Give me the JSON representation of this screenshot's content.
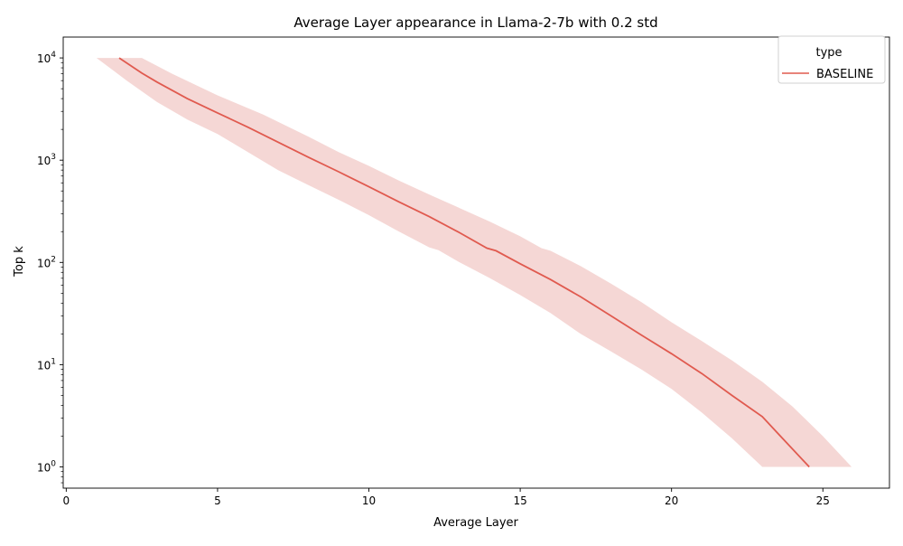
{
  "chart_data": {
    "type": "line",
    "title": "Average Layer appearance in Llama-2-7b with 0.2 std",
    "xlabel": "Average Layer",
    "ylabel": "Top k",
    "xlim": [
      -0.1,
      27.2
    ],
    "ylim": [
      0.62,
      16000
    ],
    "yscale": "log",
    "grid": false,
    "legend": {
      "title": "type",
      "position": "top-right"
    },
    "x_ticks": [
      {
        "value": 0,
        "label": "0"
      },
      {
        "value": 5,
        "label": "5"
      },
      {
        "value": 10,
        "label": "10"
      },
      {
        "value": 15,
        "label": "15"
      },
      {
        "value": 20,
        "label": "20"
      },
      {
        "value": 25,
        "label": "25"
      }
    ],
    "y_ticks": [
      {
        "value": 1,
        "base": "10",
        "exp": "0"
      },
      {
        "value": 10,
        "base": "10",
        "exp": "1"
      },
      {
        "value": 100,
        "base": "10",
        "exp": "2"
      },
      {
        "value": 1000,
        "base": "10",
        "exp": "3"
      },
      {
        "value": 10000,
        "base": "10",
        "exp": "4"
      }
    ],
    "series": [
      {
        "name": "BASELINE",
        "color": "#e05a4f",
        "band_color": "#f5d7d5",
        "points": [
          {
            "x": 1.75,
            "y": 10000
          },
          {
            "x": 2.5,
            "y": 7100
          },
          {
            "x": 3.0,
            "y": 5800
          },
          {
            "x": 4.0,
            "y": 4000
          },
          {
            "x": 5.0,
            "y": 2900
          },
          {
            "x": 6.0,
            "y": 2100
          },
          {
            "x": 7.0,
            "y": 1500
          },
          {
            "x": 8.0,
            "y": 1070
          },
          {
            "x": 9.0,
            "y": 770
          },
          {
            "x": 10.0,
            "y": 550
          },
          {
            "x": 11.0,
            "y": 390
          },
          {
            "x": 12.0,
            "y": 280
          },
          {
            "x": 13.0,
            "y": 195
          },
          {
            "x": 13.9,
            "y": 138
          },
          {
            "x": 14.2,
            "y": 130
          },
          {
            "x": 15.0,
            "y": 97
          },
          {
            "x": 16.0,
            "y": 68
          },
          {
            "x": 17.0,
            "y": 46
          },
          {
            "x": 18.0,
            "y": 30
          },
          {
            "x": 19.0,
            "y": 19.5
          },
          {
            "x": 20.0,
            "y": 12.8
          },
          {
            "x": 21.0,
            "y": 8.2
          },
          {
            "x": 22.0,
            "y": 5.0
          },
          {
            "x": 23.0,
            "y": 3.1
          },
          {
            "x": 23.6,
            "y": 2.0
          },
          {
            "x": 24.55,
            "y": 1.0
          }
        ],
        "band_upper": [
          {
            "x": 1.0,
            "y": 10000
          },
          {
            "x": 2.5,
            "y": 10000
          },
          {
            "x": 3.5,
            "y": 7000
          },
          {
            "x": 5.0,
            "y": 4300
          },
          {
            "x": 6.5,
            "y": 2800
          },
          {
            "x": 8.0,
            "y": 1700
          },
          {
            "x": 9.0,
            "y": 1200
          },
          {
            "x": 10.0,
            "y": 880
          },
          {
            "x": 11.0,
            "y": 630
          },
          {
            "x": 12.0,
            "y": 460
          },
          {
            "x": 13.0,
            "y": 340
          },
          {
            "x": 14.0,
            "y": 250
          },
          {
            "x": 15.0,
            "y": 180
          },
          {
            "x": 15.7,
            "y": 138
          },
          {
            "x": 16.0,
            "y": 130
          },
          {
            "x": 17.0,
            "y": 92
          },
          {
            "x": 18.0,
            "y": 62
          },
          {
            "x": 19.0,
            "y": 41
          },
          {
            "x": 20.0,
            "y": 26
          },
          {
            "x": 21.0,
            "y": 17
          },
          {
            "x": 22.0,
            "y": 11
          },
          {
            "x": 23.0,
            "y": 6.8
          },
          {
            "x": 24.0,
            "y": 3.9
          },
          {
            "x": 25.0,
            "y": 2.0
          },
          {
            "x": 25.95,
            "y": 1.0
          }
        ],
        "band_lower": [
          {
            "x": 1.0,
            "y": 10000
          },
          {
            "x": 2.0,
            "y": 6000
          },
          {
            "x": 3.0,
            "y": 3700
          },
          {
            "x": 4.0,
            "y": 2500
          },
          {
            "x": 5.0,
            "y": 1800
          },
          {
            "x": 6.0,
            "y": 1200
          },
          {
            "x": 7.0,
            "y": 800
          },
          {
            "x": 8.0,
            "y": 570
          },
          {
            "x": 9.0,
            "y": 410
          },
          {
            "x": 10.0,
            "y": 290
          },
          {
            "x": 11.0,
            "y": 200
          },
          {
            "x": 12.0,
            "y": 140
          },
          {
            "x": 12.3,
            "y": 132
          },
          {
            "x": 13.0,
            "y": 100
          },
          {
            "x": 14.0,
            "y": 70
          },
          {
            "x": 15.0,
            "y": 48
          },
          {
            "x": 16.0,
            "y": 32
          },
          {
            "x": 17.0,
            "y": 20
          },
          {
            "x": 18.0,
            "y": 13.5
          },
          {
            "x": 19.0,
            "y": 9.0
          },
          {
            "x": 20.0,
            "y": 5.8
          },
          {
            "x": 21.0,
            "y": 3.4
          },
          {
            "x": 22.0,
            "y": 1.9
          },
          {
            "x": 23.0,
            "y": 1.0
          }
        ]
      }
    ]
  }
}
